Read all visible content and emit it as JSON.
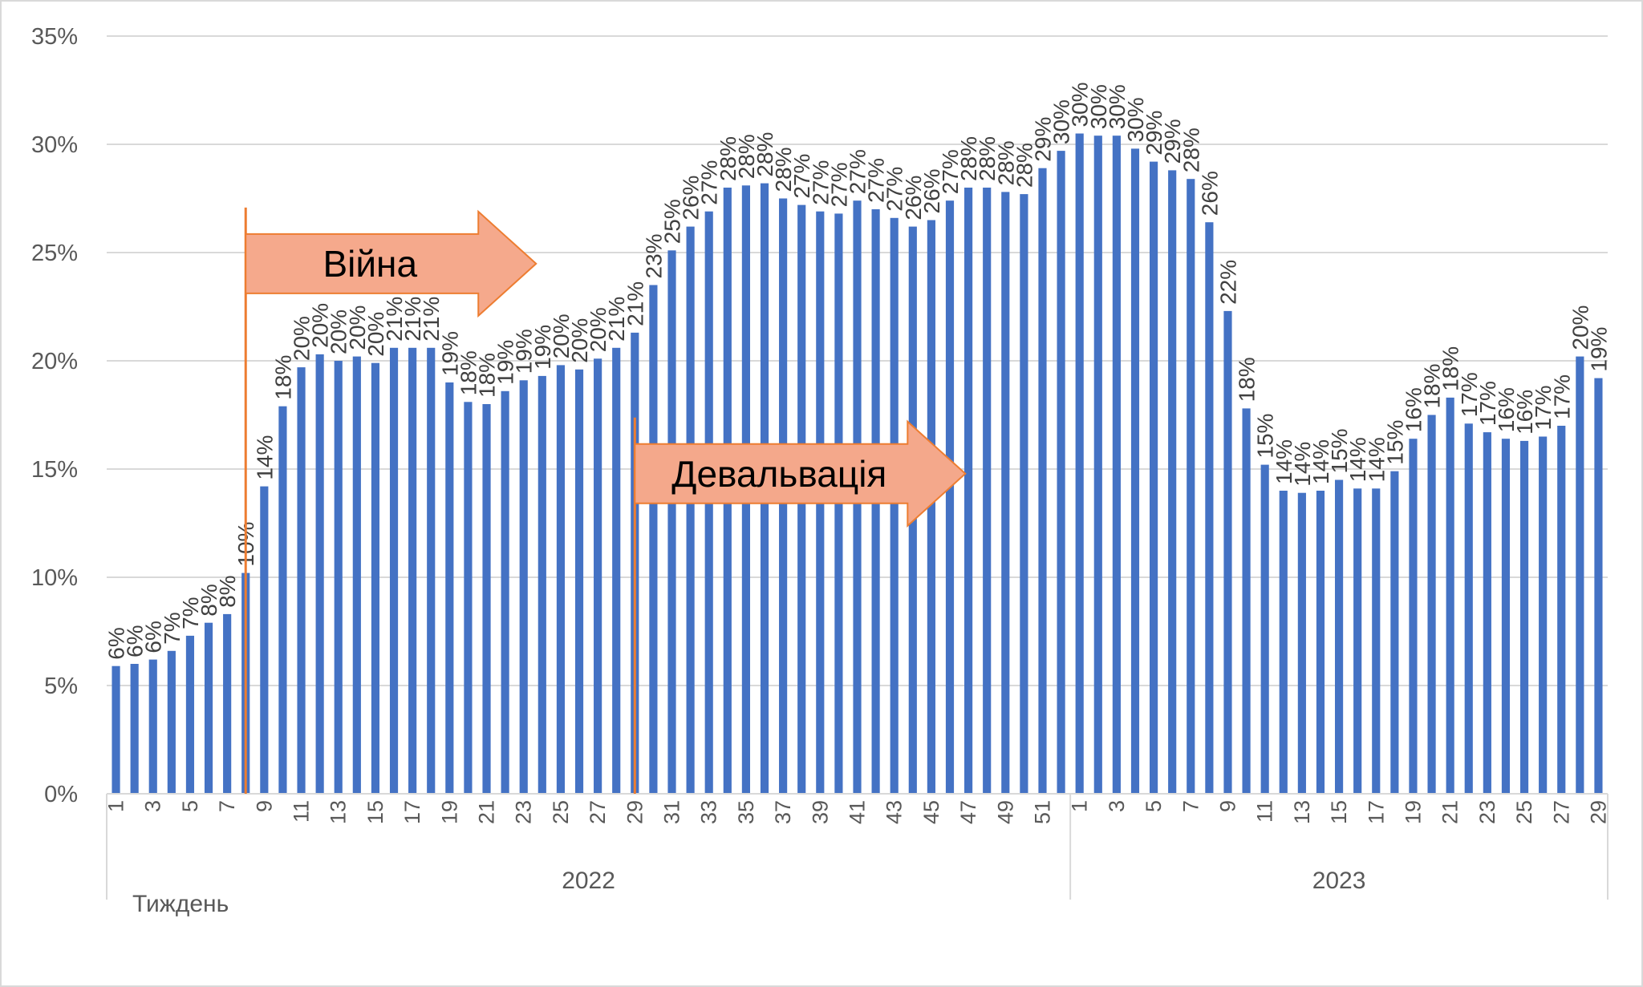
{
  "chart_data": {
    "type": "bar",
    "xlabel": "Тиждень",
    "ylabel": "",
    "ylim": [
      0,
      35
    ],
    "yticks": [
      "0%",
      "5%",
      "10%",
      "15%",
      "20%",
      "25%",
      "30%",
      "35%"
    ],
    "grid": true,
    "bar_color": "#4472c4",
    "groups": [
      {
        "label": "2022",
        "weeks": 52
      },
      {
        "label": "2023",
        "weeks": 29
      }
    ],
    "x_tick_labels_2022": [
      "1",
      "3",
      "5",
      "7",
      "9",
      "11",
      "13",
      "15",
      "17",
      "19",
      "21",
      "23",
      "25",
      "27",
      "29",
      "31",
      "33",
      "35",
      "37",
      "39",
      "41",
      "43",
      "45",
      "47",
      "49",
      "51"
    ],
    "x_tick_labels_2023": [
      "1",
      "3",
      "5",
      "7",
      "9",
      "11",
      "13",
      "15",
      "17",
      "19",
      "21",
      "23",
      "25",
      "27",
      "29"
    ],
    "values": [
      5.9,
      6.0,
      6.2,
      6.6,
      7.3,
      7.9,
      8.3,
      10.2,
      14.2,
      17.9,
      19.7,
      20.3,
      20.0,
      20.2,
      19.9,
      20.6,
      20.6,
      20.6,
      19.0,
      18.1,
      18.0,
      18.6,
      19.1,
      19.3,
      19.8,
      19.6,
      20.1,
      20.6,
      21.3,
      23.5,
      25.1,
      26.2,
      26.9,
      28.0,
      28.1,
      28.2,
      27.5,
      27.2,
      26.9,
      26.8,
      27.4,
      27.0,
      26.6,
      26.2,
      26.5,
      27.4,
      28.0,
      28.0,
      27.8,
      27.7,
      28.9,
      29.7,
      30.5,
      30.4,
      30.4,
      29.8,
      29.2,
      28.8,
      28.4,
      26.4,
      22.3,
      17.8,
      15.2,
      14.0,
      13.9,
      14.0,
      14.5,
      14.1,
      14.1,
      14.9,
      16.4,
      17.5,
      18.3,
      17.1,
      16.7,
      16.4,
      16.3,
      16.5,
      17.0,
      20.2,
      19.2
    ],
    "data_labels": [
      "6%",
      "6%",
      "6%",
      "7%",
      "7%",
      "8%",
      "8%",
      "10%",
      "14%",
      "18%",
      "20%",
      "20%",
      "20%",
      "20%",
      "20%",
      "21%",
      "21%",
      "21%",
      "19%",
      "18%",
      "18%",
      "19%",
      "19%",
      "19%",
      "20%",
      "20%",
      "20%",
      "21%",
      "21%",
      "23%",
      "25%",
      "26%",
      "27%",
      "28%",
      "28%",
      "28%",
      "28%",
      "27%",
      "27%",
      "27%",
      "27%",
      "27%",
      "27%",
      "26%",
      "26%",
      "27%",
      "28%",
      "28%",
      "28%",
      "28%",
      "29%",
      "30%",
      "30%",
      "30%",
      "30%",
      "30%",
      "29%",
      "29%",
      "28%",
      "26%",
      "22%",
      "18%",
      "15%",
      "14%",
      "14%",
      "14%",
      "15%",
      "14%",
      "14%",
      "15%",
      "16%",
      "18%",
      "18%",
      "17%",
      "17%",
      "16%",
      "16%",
      "17%",
      "17%",
      "20%",
      "19%"
    ],
    "annotations": [
      {
        "text": "Війна",
        "after_week": 7.5,
        "level": 24.3
      },
      {
        "text": "Девальвація",
        "after_week": 28.5,
        "level": 14.6
      }
    ]
  }
}
